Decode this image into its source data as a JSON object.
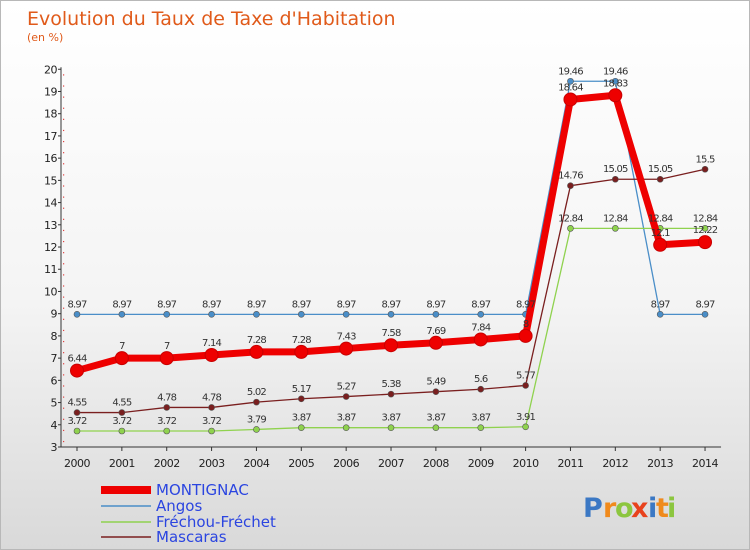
{
  "chart_data": {
    "type": "line",
    "title": "Evolution du Taux de Taxe d'Habitation",
    "subtitle": "(en %)",
    "x": [
      "2000",
      "2001",
      "2002",
      "2003",
      "2004",
      "2005",
      "2006",
      "2007",
      "2008",
      "2009",
      "2010",
      "2011",
      "2012",
      "2013",
      "2014"
    ],
    "ylim": [
      3,
      20
    ],
    "yticks": [
      3,
      4,
      5,
      6,
      7,
      8,
      9,
      10,
      11,
      12,
      13,
      14,
      15,
      16,
      17,
      18,
      19,
      20
    ],
    "grid": false,
    "legend_position": "bottom-left",
    "series": [
      {
        "name": "Angos",
        "color": "#4a8ec8",
        "values": [
          8.97,
          8.97,
          8.97,
          8.97,
          8.97,
          8.97,
          8.97,
          8.97,
          8.97,
          8.97,
          8.97,
          19.46,
          19.46,
          8.97,
          8.97
        ]
      },
      {
        "name": "Fréchou-Fréchet",
        "color": "#8fd24e",
        "values": [
          3.72,
          3.72,
          3.72,
          3.72,
          3.79,
          3.87,
          3.87,
          3.87,
          3.87,
          3.87,
          3.91,
          12.84,
          12.84,
          12.84,
          12.84
        ]
      },
      {
        "name": "Mascaras",
        "color": "#7a1f1f",
        "values": [
          4.55,
          4.55,
          4.78,
          4.78,
          5.02,
          5.17,
          5.27,
          5.38,
          5.49,
          5.6,
          5.77,
          14.76,
          15.05,
          15.05,
          15.5
        ]
      },
      {
        "name": "MONTIGNAC",
        "color": "#ee0000",
        "values": [
          6.44,
          7,
          7,
          7.14,
          7.28,
          7.28,
          7.43,
          7.58,
          7.69,
          7.84,
          8,
          18.64,
          18.83,
          12.1,
          12.22
        ]
      }
    ],
    "data_labels": {
      "Angos": [
        "8.97",
        "8.97",
        "8.97",
        "8.97",
        "8.97",
        "8.97",
        "8.97",
        "8.97",
        "8.97",
        "8.97",
        "8.97",
        "19.46",
        "19.46",
        "8.97",
        "8.97"
      ],
      "Fréchou-Fréchet": [
        "3.72",
        "3.72",
        "3.72",
        "3.72",
        "3.79",
        "3.87",
        "3.87",
        "3.87",
        "3.87",
        "3.87",
        "3.91",
        "12.84",
        "12.84",
        "12.84",
        "12.84"
      ],
      "Mascaras": [
        "4.55",
        "4.55",
        "4.78",
        "4.78",
        "5.02",
        "5.17",
        "5.27",
        "5.38",
        "5.49",
        "5.6",
        "5.77",
        "14.76",
        "15.05",
        "15.05",
        "15.5"
      ],
      "MONTIGNAC": [
        "6.44",
        "7",
        "7",
        "7.14",
        "7.28",
        "7.28",
        "7.43",
        "7.58",
        "7.69",
        "7.84",
        "8",
        "18.64",
        "18.83",
        "12.1",
        "12.22"
      ]
    },
    "legend": [
      "MONTIGNAC",
      "Angos",
      "Fréchou-Fréchet",
      "Mascaras"
    ]
  },
  "logo": {
    "text": "Proxiti",
    "letters": [
      "P",
      "r",
      "o",
      "x",
      "i",
      "t",
      "i"
    ],
    "colors": [
      "#3b78c4",
      "#f08a1c",
      "#8cc63f",
      "#e8421c",
      "#3b78c4",
      "#f08a1c",
      "#8cc63f"
    ]
  }
}
